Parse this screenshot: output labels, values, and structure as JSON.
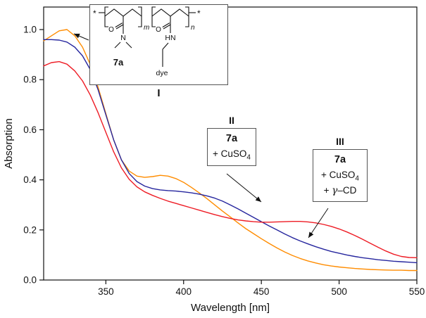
{
  "chart_data": {
    "type": "line",
    "title": "",
    "xlabel": "Wavelength [nm]",
    "ylabel": "Absorption",
    "xlim": [
      310,
      550
    ],
    "ylim": [
      0,
      1.09
    ],
    "x_ticks": [
      350,
      400,
      450,
      500,
      550
    ],
    "y_ticks": [
      0,
      0.2,
      0.4,
      0.6,
      0.8,
      1.0
    ],
    "grid": false,
    "legend_position": "none (curves identified by annotation boxes I, II, III)",
    "series": [
      {
        "name": "I: 7a (polymer with dye)",
        "color": "#ff8c00",
        "x": [
          310,
          315,
          320,
          325,
          330,
          335,
          340,
          345,
          350,
          355,
          360,
          365,
          370,
          375,
          380,
          385,
          390,
          395,
          400,
          405,
          410,
          415,
          420,
          425,
          430,
          435,
          440,
          445,
          450,
          455,
          460,
          465,
          470,
          475,
          480,
          485,
          490,
          495,
          500,
          505,
          510,
          515,
          520,
          525,
          530,
          535,
          540,
          545,
          550
        ],
        "y": [
          0.955,
          0.975,
          0.995,
          1.0,
          0.975,
          0.93,
          0.86,
          0.77,
          0.665,
          0.56,
          0.48,
          0.435,
          0.415,
          0.41,
          0.413,
          0.418,
          0.415,
          0.405,
          0.39,
          0.37,
          0.348,
          0.325,
          0.3,
          0.275,
          0.252,
          0.228,
          0.205,
          0.185,
          0.165,
          0.146,
          0.128,
          0.112,
          0.098,
          0.086,
          0.076,
          0.068,
          0.061,
          0.056,
          0.052,
          0.049,
          0.046,
          0.044,
          0.042,
          0.041,
          0.04,
          0.039,
          0.039,
          0.038,
          0.038
        ]
      },
      {
        "name": "II: 7a + CuSO4",
        "color": "#26269e",
        "x": [
          310,
          315,
          320,
          325,
          330,
          335,
          340,
          345,
          350,
          355,
          360,
          365,
          370,
          375,
          380,
          385,
          390,
          395,
          400,
          405,
          410,
          415,
          420,
          425,
          430,
          435,
          440,
          445,
          450,
          455,
          460,
          465,
          470,
          475,
          480,
          485,
          490,
          495,
          500,
          505,
          510,
          515,
          520,
          525,
          530,
          535,
          540,
          545,
          550
        ],
        "y": [
          0.96,
          0.96,
          0.958,
          0.95,
          0.93,
          0.895,
          0.84,
          0.76,
          0.66,
          0.56,
          0.48,
          0.425,
          0.393,
          0.375,
          0.365,
          0.36,
          0.357,
          0.355,
          0.352,
          0.348,
          0.343,
          0.336,
          0.327,
          0.315,
          0.3,
          0.284,
          0.267,
          0.25,
          0.233,
          0.216,
          0.2,
          0.184,
          0.169,
          0.156,
          0.144,
          0.133,
          0.123,
          0.114,
          0.107,
          0.1,
          0.094,
          0.089,
          0.085,
          0.081,
          0.078,
          0.075,
          0.073,
          0.071,
          0.069
        ]
      },
      {
        "name": "III: 7a + CuSO4 + γ-CD",
        "color": "#ee1c25",
        "x": [
          310,
          315,
          320,
          325,
          330,
          335,
          340,
          345,
          350,
          355,
          360,
          365,
          370,
          375,
          380,
          385,
          390,
          395,
          400,
          405,
          410,
          415,
          420,
          425,
          430,
          435,
          440,
          445,
          450,
          455,
          460,
          465,
          470,
          475,
          480,
          485,
          490,
          495,
          500,
          505,
          510,
          515,
          520,
          525,
          530,
          535,
          540,
          545,
          550
        ],
        "y": [
          0.855,
          0.868,
          0.872,
          0.862,
          0.835,
          0.795,
          0.738,
          0.668,
          0.59,
          0.512,
          0.448,
          0.402,
          0.372,
          0.352,
          0.338,
          0.326,
          0.315,
          0.306,
          0.297,
          0.288,
          0.279,
          0.27,
          0.261,
          0.253,
          0.246,
          0.24,
          0.236,
          0.233,
          0.231,
          0.231,
          0.232,
          0.233,
          0.234,
          0.234,
          0.232,
          0.228,
          0.222,
          0.214,
          0.204,
          0.192,
          0.178,
          0.163,
          0.147,
          0.131,
          0.116,
          0.103,
          0.094,
          0.09,
          0.089
        ]
      }
    ]
  },
  "inset": {
    "label": "I",
    "compound": "7a",
    "dye": "dye",
    "sub_m": "m",
    "sub_n": "n",
    "star_left": "*",
    "star_right": "*",
    "atom_o1": "O",
    "atom_o2": "O",
    "atom_n": "N",
    "atom_hn": "HN"
  },
  "annotation_ii": {
    "label": "II",
    "line1": "7a",
    "line2": "+ CuSO",
    "line2_sub": "4"
  },
  "annotation_iii": {
    "label": "III",
    "line1": "7a",
    "line2": "+ CuSO",
    "line2_sub": "4",
    "line3_pre": "+ ",
    "line3_gamma": "γ",
    "line3_rest": "–CD"
  }
}
